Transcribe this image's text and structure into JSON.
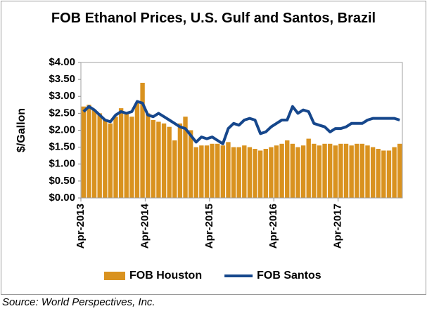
{
  "chart_data": {
    "type": "combo",
    "title": "FOB Ethanol Prices, U.S. Gulf and Santos, Brazil",
    "y_label": "$/Gallon",
    "source": "Source: World Perspectives, Inc.",
    "categories": [
      "Apr-2013",
      null,
      null,
      null,
      null,
      null,
      null,
      null,
      null,
      null,
      null,
      null,
      "Apr-2014",
      null,
      null,
      null,
      null,
      null,
      null,
      null,
      null,
      null,
      null,
      null,
      "Apr-2015",
      null,
      null,
      null,
      null,
      null,
      null,
      null,
      null,
      null,
      null,
      null,
      "Apr-2016",
      null,
      null,
      null,
      null,
      null,
      null,
      null,
      null,
      null,
      null,
      null,
      "Apr-2017",
      null,
      null,
      null,
      null,
      null,
      null,
      null,
      null,
      null,
      null,
      null
    ],
    "series": [
      {
        "name": "FOB Houston",
        "type": "bar",
        "color": "#d9921f",
        "values": [
          2.7,
          2.75,
          2.6,
          2.5,
          2.3,
          2.2,
          2.4,
          2.65,
          2.5,
          2.4,
          2.8,
          3.4,
          2.5,
          2.3,
          2.25,
          2.2,
          2.1,
          1.7,
          2.2,
          2.4,
          2.0,
          1.5,
          1.55,
          1.55,
          1.6,
          1.6,
          1.55,
          1.65,
          1.5,
          1.5,
          1.55,
          1.5,
          1.45,
          1.4,
          1.45,
          1.5,
          1.55,
          1.6,
          1.7,
          1.6,
          1.5,
          1.55,
          1.75,
          1.6,
          1.55,
          1.6,
          1.6,
          1.55,
          1.6,
          1.6,
          1.55,
          1.6,
          1.6,
          1.55,
          1.5,
          1.45,
          1.4,
          1.4,
          1.5,
          1.6
        ]
      },
      {
        "name": "FOB Santos",
        "type": "line",
        "color": "#16478c",
        "values": [
          2.55,
          2.7,
          2.6,
          2.45,
          2.3,
          2.25,
          2.45,
          2.55,
          2.5,
          2.55,
          2.85,
          2.8,
          2.45,
          2.4,
          2.5,
          2.4,
          2.3,
          2.2,
          2.1,
          2.05,
          1.85,
          1.65,
          1.8,
          1.75,
          1.8,
          1.7,
          1.6,
          2.05,
          2.2,
          2.15,
          2.3,
          2.35,
          2.3,
          1.9,
          1.95,
          2.1,
          2.2,
          2.3,
          2.3,
          2.7,
          2.5,
          2.6,
          2.55,
          2.2,
          2.15,
          2.1,
          1.95,
          2.05,
          2.05,
          2.1,
          2.2,
          2.2,
          2.2,
          2.3,
          2.35,
          2.35,
          2.35,
          2.35,
          2.35,
          2.3
        ]
      }
    ],
    "ylim": [
      0,
      4
    ],
    "yticks": [
      {
        "value": 0,
        "label": "$0.00"
      },
      {
        "value": 0.5,
        "label": "$0.50"
      },
      {
        "value": 1,
        "label": "$1.00"
      },
      {
        "value": 1.5,
        "label": "$1.50"
      },
      {
        "value": 2,
        "label": "$2.00"
      },
      {
        "value": 2.5,
        "label": "$2.50"
      },
      {
        "value": 3,
        "label": "$3.00"
      },
      {
        "value": 3.5,
        "label": "$3.50"
      },
      {
        "value": 4,
        "label": "$4.00"
      }
    ],
    "grid": false,
    "legend": "bottom"
  }
}
